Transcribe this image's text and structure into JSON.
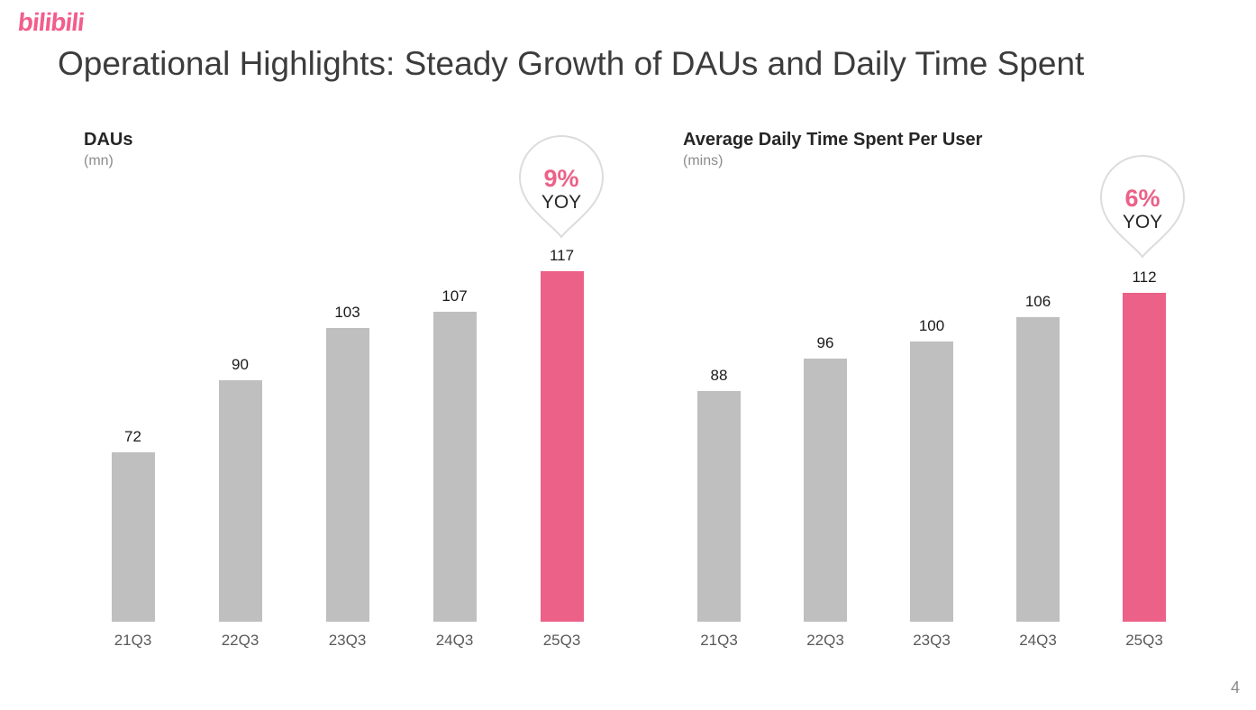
{
  "brand": {
    "logo_text": "bilibili"
  },
  "page": {
    "title": "Operational Highlights: Steady Growth of DAUs and Daily Time Spent",
    "page_number": "4"
  },
  "colors": {
    "accent": "#EC6188",
    "bar-gray": "#BFBFBF",
    "badge-border": "#DCDCDC",
    "logo-pink": "#F25D8C",
    "title-text": "#3C3C3C",
    "label-dark": "#1A1A1A",
    "label-gray": "#595959",
    "subtitle-gray": "#8C8C8C",
    "page-number-gray": "#8A8A8A"
  },
  "chart_data": [
    {
      "type": "bar",
      "title": "DAUs",
      "subtitle": "(mn)",
      "categories": [
        "21Q3",
        "22Q3",
        "23Q3",
        "24Q3",
        "25Q3"
      ],
      "values": [
        72,
        90,
        103,
        107,
        117
      ],
      "highlight_index": 4,
      "highlight_category": "25Q3",
      "badge": {
        "percent": "9%",
        "label": "YOY"
      },
      "ylim": [
        30,
        120
      ],
      "grid": false,
      "legend": false,
      "data_labels": true
    },
    {
      "type": "bar",
      "title": "Average Daily Time Spent Per User",
      "subtitle": "(mins)",
      "categories": [
        "21Q3",
        "22Q3",
        "23Q3",
        "24Q3",
        "25Q3"
      ],
      "values": [
        88,
        96,
        100,
        106,
        112
      ],
      "highlight_index": 4,
      "highlight_category": "25Q3",
      "badge": {
        "percent": "6%",
        "label": "YOY"
      },
      "ylim": [
        32,
        120
      ],
      "grid": false,
      "legend": false,
      "data_labels": true
    }
  ]
}
